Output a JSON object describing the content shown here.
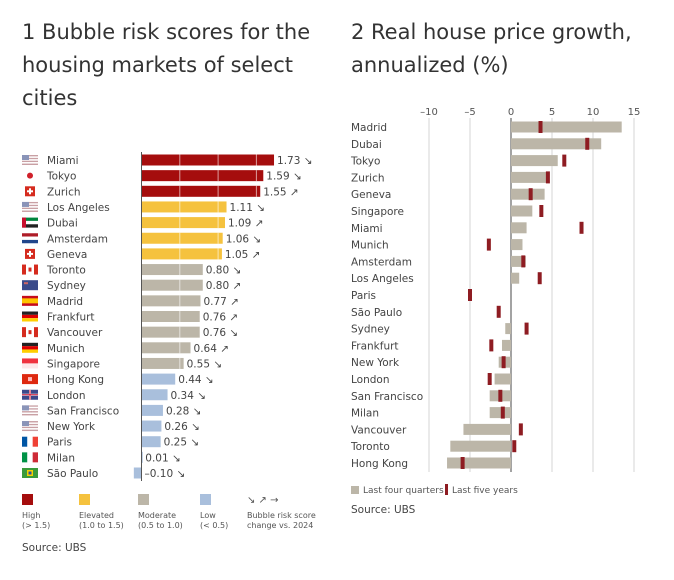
{
  "left": {
    "title": "1 Bubble risk scores for the housing markets of select cities",
    "source": "Source: UBS",
    "legend": [
      {
        "label": "High",
        "sub": "(> 1.5)",
        "color": "#a50d0d"
      },
      {
        "label": "Elevated",
        "sub": "(1.0 to 1.5)",
        "color": "#f5c23e"
      },
      {
        "label": "Moderate",
        "sub": "(0.5 to 1.0)",
        "color": "#bcb6a8"
      },
      {
        "label": "Low",
        "sub": "(< 0.5)",
        "color": "#a9bfdc"
      }
    ],
    "arrow_legend": {
      "symbols": "↘ ↗ →",
      "label": "Bubble risk score change vs. 2024"
    }
  },
  "right": {
    "title": "2 Real house price growth, annualized (%)",
    "source": "Source: UBS",
    "legend": [
      {
        "label": "Last four quarters",
        "color": "#bcb6a8"
      },
      {
        "label": "Last five years",
        "color": "#8e1c22"
      }
    ]
  },
  "chart_data": [
    {
      "type": "bar",
      "orientation": "horizontal",
      "title": "1 Bubble risk scores for the housing markets of select cities",
      "categories": [
        "Miami",
        "Tokyo",
        "Zurich",
        "Los Angeles",
        "Dubai",
        "Amsterdam",
        "Geneva",
        "Toronto",
        "Sydney",
        "Madrid",
        "Frankfurt",
        "Vancouver",
        "Munich",
        "Singapore",
        "Hong Kong",
        "London",
        "San Francisco",
        "New York",
        "Paris",
        "Milan",
        "São Paulo"
      ],
      "values": [
        1.73,
        1.59,
        1.55,
        1.11,
        1.09,
        1.06,
        1.05,
        0.8,
        0.8,
        0.77,
        0.76,
        0.76,
        0.64,
        0.55,
        0.44,
        0.34,
        0.28,
        0.26,
        0.25,
        0.01,
        -0.1
      ],
      "labels": [
        "1.73",
        "1.59",
        "1.55",
        "1.11",
        "1.09",
        "1.06",
        "1.05",
        "0.80",
        "0.80",
        "0.77",
        "0.76",
        "0.76",
        "0.64",
        "0.55",
        "0.44",
        "0.34",
        "0.28",
        "0.26",
        "0.25",
        "0.01",
        "–0.10"
      ],
      "change_vs_2024": [
        "down",
        "down",
        "up",
        "down",
        "up",
        "down",
        "up",
        "down",
        "up",
        "up",
        "up",
        "down",
        "up",
        "down",
        "down",
        "down",
        "down",
        "down",
        "down",
        "down",
        "down"
      ],
      "flags": [
        "us",
        "jp",
        "ch",
        "us",
        "ae",
        "nl",
        "ch",
        "ca",
        "au",
        "es",
        "de",
        "ca",
        "de",
        "sg",
        "hk",
        "gb",
        "us",
        "us",
        "fr",
        "it",
        "br"
      ],
      "risk_class": [
        "High",
        "High",
        "High",
        "Elevated",
        "Elevated",
        "Elevated",
        "Elevated",
        "Moderate",
        "Moderate",
        "Moderate",
        "Moderate",
        "Moderate",
        "Moderate",
        "Moderate",
        "Low",
        "Low",
        "Low",
        "Low",
        "Low",
        "Low",
        "Low"
      ]
    },
    {
      "type": "bar",
      "orientation": "horizontal",
      "title": "2 Real house price growth, annualized (%)",
      "categories": [
        "Madrid",
        "Dubai",
        "Tokyo",
        "Zurich",
        "Geneva",
        "Singapore",
        "Miami",
        "Munich",
        "Amsterdam",
        "Los Angeles",
        "Paris",
        "São Paulo",
        "Sydney",
        "Frankfurt",
        "New York",
        "London",
        "San Francisco",
        "Milan",
        "Vancouver",
        "Toronto",
        "Hong Kong"
      ],
      "series": [
        {
          "name": "Last four quarters",
          "values": [
            13.5,
            11.0,
            5.7,
            4.6,
            4.1,
            2.6,
            1.9,
            1.4,
            1.8,
            1.0,
            0.0,
            0.0,
            -0.7,
            -1.1,
            -1.5,
            -2.0,
            -2.6,
            -2.6,
            -5.8,
            -7.4,
            -7.8
          ]
        },
        {
          "name": "Last five years",
          "values": [
            3.6,
            9.3,
            6.5,
            4.5,
            2.4,
            3.7,
            8.6,
            -2.7,
            1.5,
            3.5,
            -5.0,
            -1.5,
            1.9,
            -2.4,
            -0.9,
            -2.6,
            -1.3,
            -1.0,
            1.2,
            0.4,
            -5.9
          ]
        }
      ],
      "xlim": [
        -10,
        15
      ],
      "xticks": [
        -10,
        -5,
        0,
        5,
        10,
        15
      ],
      "xtick_labels": [
        "–10",
        "–5",
        "0",
        "5",
        "10",
        "15"
      ],
      "grid": true,
      "legend_position": "bottom-left"
    }
  ]
}
